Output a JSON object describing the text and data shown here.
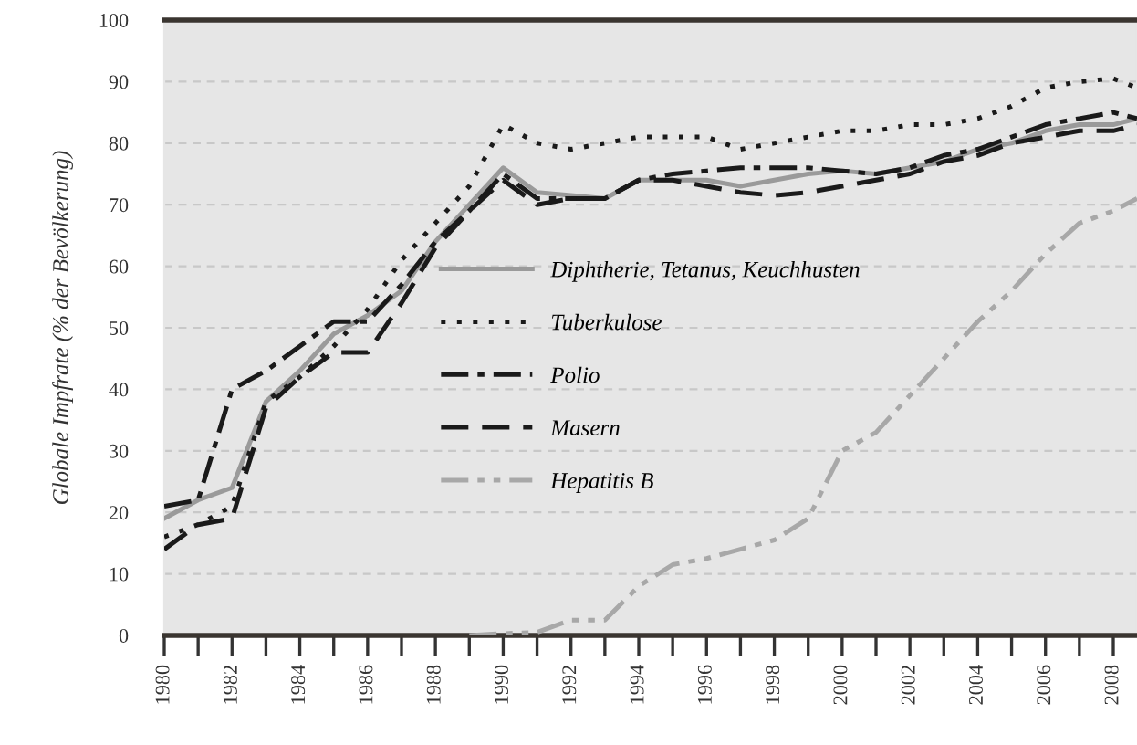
{
  "chart_data": {
    "type": "line",
    "ylabel": "Globale Impfrate (% der Bevölkerung)",
    "x": [
      1980,
      1981,
      1982,
      1983,
      1984,
      1985,
      1986,
      1987,
      1988,
      1989,
      1990,
      1991,
      1992,
      1993,
      1994,
      1995,
      1996,
      1997,
      1998,
      1999,
      2000,
      2001,
      2002,
      2003,
      2004,
      2005,
      2006,
      2007,
      2008,
      2008.7
    ],
    "series": [
      {
        "name": "Diphtherie, Tetanus, Keuchhusten",
        "color": "#9a9a9a",
        "line_style": "solid",
        "values": [
          19,
          22,
          24,
          38,
          43,
          49,
          52,
          56,
          64,
          70,
          76,
          72,
          71.5,
          71,
          74,
          74,
          74,
          73,
          74,
          75,
          75.5,
          75,
          76,
          77,
          79,
          80,
          82,
          83,
          83,
          84
        ]
      },
      {
        "name": "Tuberkulose",
        "color": "#1a1a1a",
        "line_style": "dotted",
        "values": [
          16,
          18,
          21,
          38,
          42,
          47,
          53,
          61,
          67,
          73,
          83,
          80,
          79,
          80,
          81,
          81,
          81,
          79,
          80,
          81,
          82,
          82,
          83,
          83,
          84,
          86,
          89,
          90,
          90.5,
          89
        ]
      },
      {
        "name": "Polio",
        "color": "#1a1a1a",
        "line_style": "dashdot",
        "values": [
          21,
          22,
          40,
          43,
          47,
          51,
          51,
          57,
          64,
          69,
          75,
          71,
          71,
          71,
          74,
          75,
          75.5,
          76,
          76,
          76,
          75.5,
          75,
          76,
          78,
          79,
          81,
          83,
          84,
          85,
          84
        ]
      },
      {
        "name": "Masern",
        "color": "#1a1a1a",
        "line_style": "dashed",
        "values": [
          14,
          18,
          19,
          37,
          42,
          46,
          46,
          54,
          63,
          69,
          74,
          70,
          71,
          71,
          74,
          74,
          73,
          72,
          71.5,
          72,
          73,
          74,
          75,
          77,
          78,
          80,
          81,
          82,
          82,
          83
        ]
      },
      {
        "name": "Hepatitis B",
        "color": "#a8a8a8",
        "line_style": "dashdotdot",
        "values": [
          null,
          null,
          null,
          null,
          null,
          null,
          null,
          null,
          null,
          0,
          0.3,
          0.5,
          2.5,
          2.5,
          8,
          11.5,
          12.5,
          14,
          15.5,
          19,
          30,
          33,
          39,
          45,
          51,
          56,
          62,
          67,
          69,
          71
        ]
      }
    ],
    "xlim": [
      1980,
      2008.7
    ],
    "xticks": [
      1980,
      {
        "value": 1981,
        "label": null
      },
      1982,
      {
        "value": 1983,
        "label": null
      },
      1984,
      {
        "value": 1985,
        "label": null
      },
      1986,
      {
        "value": 1987,
        "label": null
      },
      1988,
      {
        "value": 1989,
        "label": null
      },
      1990,
      {
        "value": 1991,
        "label": null
      },
      1992,
      {
        "value": 1993,
        "label": null
      },
      1994,
      {
        "value": 1995,
        "label": null
      },
      1996,
      {
        "value": 1997,
        "label": null
      },
      1998,
      {
        "value": 1999,
        "label": null
      },
      2000,
      {
        "value": 2001,
        "label": null
      },
      2002,
      {
        "value": 2003,
        "label": null
      },
      2004,
      {
        "value": 2005,
        "label": null
      },
      2006,
      {
        "value": 2007,
        "label": null
      },
      2008
    ],
    "ylim": [
      0,
      100
    ],
    "yticks": [
      0,
      10,
      20,
      30,
      40,
      50,
      60,
      70,
      80,
      90,
      100
    ],
    "grid": "y",
    "legend": "center"
  }
}
